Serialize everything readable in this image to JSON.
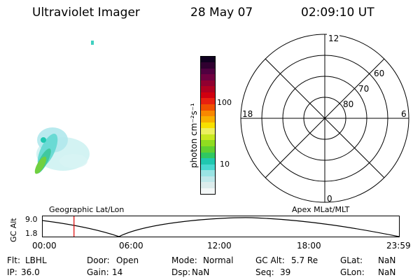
{
  "header": {
    "title": "Ultraviolet Imager",
    "date": "28 May 07",
    "time": "02:09:10 UT"
  },
  "colorbar": {
    "unit_label": "photon cm⁻²s⁻¹",
    "tick_labels": [
      "100",
      "10"
    ],
    "colors": [
      "#f4f8f8",
      "#dcecec",
      "#c0e8ea",
      "#9ae4e4",
      "#4ad8d0",
      "#20c8b0",
      "#30c860",
      "#60d030",
      "#90dc20",
      "#c8e820",
      "#ecf060",
      "#f8e000",
      "#f8b000",
      "#f88800",
      "#f05000",
      "#e82010",
      "#d00010",
      "#b00020",
      "#900030",
      "#700040",
      "#500040",
      "#300030",
      "#100020"
    ]
  },
  "polar_plot": {
    "mlt_labels": {
      "top": "12",
      "left": "18",
      "right": "6",
      "bottom": "0"
    },
    "lat_labels": [
      "60",
      "70",
      "80"
    ]
  },
  "timeline": {
    "left_header": "Geographic Lat/Lon",
    "right_header": "Apex MLat/MLT",
    "y_axis_label": "GC Alt",
    "y_ticks": [
      "9.0",
      "1.8"
    ],
    "x_ticks": [
      "00:00",
      "06:00",
      "12:00",
      "18:00",
      "23:59"
    ],
    "marker_time": "02:09",
    "marker_color": "#dd0000"
  },
  "footer": {
    "rows": [
      [
        {
          "key": "Flt:",
          "value": "LBHL"
        },
        {
          "key": "Door:",
          "value": "Open"
        },
        {
          "key": "Mode:",
          "value": "Normal"
        },
        {
          "key": "GC Alt:",
          "value": "5.7 Re"
        },
        {
          "key": "GLat:",
          "value": "NaN"
        }
      ],
      [
        {
          "key": "IP:",
          "value": "36.0"
        },
        {
          "key": "Gain:",
          "value": "14"
        },
        {
          "key": "Dsp:",
          "value": "NaN"
        },
        {
          "key": "Seq:",
          "value": "39"
        },
        {
          "key": "GLon:",
          "value": "NaN"
        }
      ]
    ]
  }
}
